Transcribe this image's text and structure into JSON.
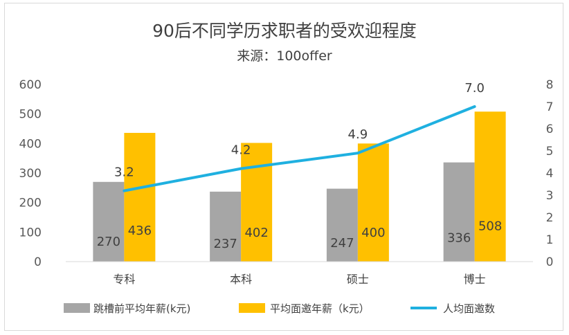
{
  "chart_data": {
    "type": "bar",
    "title": "90后不同学历求职者的受欢迎程度",
    "subtitle": "来源：100offer",
    "categories": [
      "专科",
      "本科",
      "硕士",
      "博士"
    ],
    "series": [
      {
        "name": "跳槽前平均年薪(k元)",
        "type": "bar",
        "axis": "left",
        "color": "#a6a6a6",
        "values": [
          270,
          237,
          247,
          336
        ],
        "labels": [
          "270",
          "237",
          "247",
          "336"
        ]
      },
      {
        "name": "平均面邀年薪（k元）",
        "type": "bar",
        "axis": "left",
        "color": "#ffc000",
        "values": [
          436,
          402,
          400,
          508
        ],
        "labels": [
          "436",
          "402",
          "400",
          "508"
        ]
      },
      {
        "name": "人均面邀数",
        "type": "line",
        "axis": "right",
        "color": "#1fb0e0",
        "values": [
          3.2,
          4.2,
          4.9,
          7.0
        ],
        "labels": [
          "3.2",
          "4.2",
          "4.9",
          "7.0"
        ]
      }
    ],
    "y_left": {
      "min": 0,
      "max": 600,
      "ticks": [
        "0",
        "100",
        "200",
        "300",
        "400",
        "500",
        "600"
      ]
    },
    "y_right": {
      "min": 0,
      "max": 8,
      "ticks": [
        "0",
        "1",
        "2",
        "3",
        "4",
        "5",
        "6",
        "7",
        "8"
      ]
    },
    "grid": false,
    "legend_position": "bottom"
  }
}
